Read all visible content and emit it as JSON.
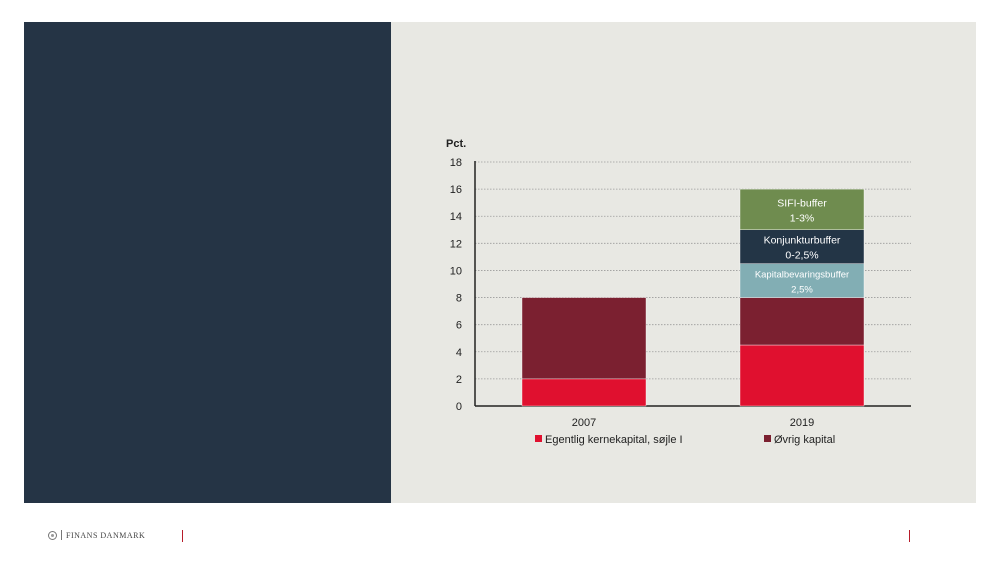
{
  "brand": {
    "name": "FINANS DANMARK",
    "accent_color": "#b71c2a",
    "left_panel_color": "#253445"
  },
  "chart_data": {
    "type": "bar",
    "stacked": true,
    "unit_label": "Pct.",
    "ylim": [
      0,
      18
    ],
    "yticks": [
      "0",
      "2",
      "4",
      "6",
      "8",
      "10",
      "12",
      "14",
      "16",
      "18"
    ],
    "grid": true,
    "categories": [
      "2007",
      "2019"
    ],
    "series": [
      {
        "name": "Egentlig kernekapital, søjle I",
        "color": "#e0102f",
        "values": [
          2,
          4.5
        ],
        "in_legend": true
      },
      {
        "name": "Øvrig kapital",
        "color": "#7b2030",
        "values": [
          6,
          3.5
        ],
        "in_legend": true
      },
      {
        "name": "Kapitalbevaringsbuffer",
        "color": "#82aeb4",
        "values": [
          0,
          2.5
        ],
        "in_legend": false,
        "segment_label": [
          "Kapitalbevaringsbuffer",
          "2,5%"
        ]
      },
      {
        "name": "Konjunkturbuffer",
        "color": "#233546",
        "values": [
          0,
          2.5
        ],
        "in_legend": false,
        "segment_label": [
          "Konjunkturbuffer",
          "0-2,5%"
        ]
      },
      {
        "name": "SIFI-buffer",
        "color": "#6f8c4f",
        "values": [
          0,
          3
        ],
        "in_legend": false,
        "segment_label": [
          "SIFI-buffer",
          "1-3%"
        ]
      }
    ],
    "legend_position": "bottom"
  }
}
